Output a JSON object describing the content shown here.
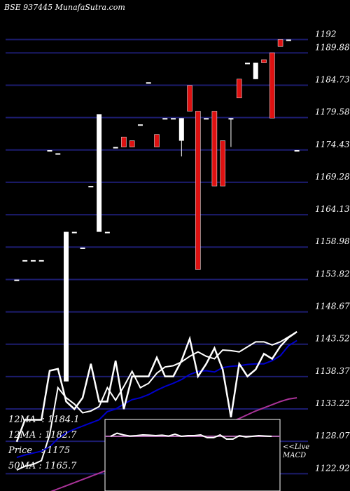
{
  "header": {
    "symbol": "BSE 937445",
    "site": "MunafaSutra.com"
  },
  "chart_data": {
    "type": "candlestick",
    "ylim": [
      1120.5,
      1195.5
    ],
    "y_ticks": [
      "1192",
      "1189.88",
      "1184.73",
      "1179.58",
      "1174.43",
      "1169.28",
      "1164.13",
      "1158.98",
      "1153.82",
      "1148.67",
      "1143.52",
      "1138.37",
      "1133.22",
      "1128.07",
      "1122.92"
    ],
    "tick_values": [
      1192,
      1189.88,
      1184.73,
      1179.58,
      1174.43,
      1169.28,
      1164.13,
      1158.98,
      1153.82,
      1148.67,
      1143.52,
      1138.37,
      1133.22,
      1128.07,
      1122.92
    ],
    "candles": [
      {
        "o": 1153.8,
        "h": 1153.8,
        "l": 1153.8,
        "c": 1153.8,
        "color": "white"
      },
      {
        "o": 1156.9,
        "h": 1156.9,
        "l": 1156.9,
        "c": 1156.9,
        "color": "white"
      },
      {
        "o": 1156.9,
        "h": 1156.9,
        "l": 1156.9,
        "c": 1156.9,
        "color": "white"
      },
      {
        "o": 1156.9,
        "h": 1156.9,
        "l": 1156.9,
        "c": 1156.9,
        "color": "white"
      },
      {
        "o": 1174.4,
        "h": 1174.4,
        "l": 1174.4,
        "c": 1174.4,
        "color": "white"
      },
      {
        "o": 1173.9,
        "h": 1173.9,
        "l": 1173.9,
        "c": 1173.9,
        "color": "white"
      },
      {
        "o": 1137.6,
        "h": 1161.4,
        "l": 1137.6,
        "c": 1161.4,
        "color": "white"
      },
      {
        "o": 1161.4,
        "h": 1161.4,
        "l": 1161.4,
        "c": 1161.4,
        "color": "white"
      },
      {
        "o": 1158.9,
        "h": 1158.9,
        "l": 1158.9,
        "c": 1158.9,
        "color": "white"
      },
      {
        "o": 1168.7,
        "h": 1168.7,
        "l": 1168.7,
        "c": 1168.7,
        "color": "white"
      },
      {
        "o": 1161.4,
        "h": 1180.1,
        "l": 1161.4,
        "c": 1180.1,
        "color": "white"
      },
      {
        "o": 1161.4,
        "h": 1161.4,
        "l": 1161.4,
        "c": 1161.4,
        "color": "white"
      },
      {
        "o": 1174.9,
        "h": 1174.9,
        "l": 1174.9,
        "c": 1174.9,
        "color": "white"
      },
      {
        "o": 1176.5,
        "h": 1176.5,
        "l": 1174.9,
        "c": 1174.9,
        "color": "red"
      },
      {
        "o": 1175.9,
        "h": 1175.9,
        "l": 1174.9,
        "c": 1174.9,
        "color": "red"
      },
      {
        "o": 1178.5,
        "h": 1178.5,
        "l": 1178.5,
        "c": 1178.5,
        "color": "white"
      },
      {
        "o": 1185.2,
        "h": 1185.2,
        "l": 1185.2,
        "c": 1185.2,
        "color": "white"
      },
      {
        "o": 1176.9,
        "h": 1176.9,
        "l": 1174.9,
        "c": 1174.9,
        "color": "red"
      },
      {
        "o": 1179.5,
        "h": 1179.5,
        "l": 1179.5,
        "c": 1179.5,
        "color": "white"
      },
      {
        "o": 1179.5,
        "h": 1179.5,
        "l": 1179.5,
        "c": 1179.5,
        "color": "white"
      },
      {
        "o": 1175.9,
        "h": 1179.5,
        "l": 1173.4,
        "c": 1179.5,
        "color": "white"
      },
      {
        "o": 1184.7,
        "h": 1184.7,
        "l": 1180.6,
        "c": 1180.6,
        "color": "red"
      },
      {
        "o": 1180.6,
        "h": 1180.6,
        "l": 1155.4,
        "c": 1155.4,
        "color": "red"
      },
      {
        "o": 1179.5,
        "h": 1179.5,
        "l": 1179.5,
        "c": 1179.5,
        "color": "white"
      },
      {
        "o": 1180.6,
        "h": 1180.6,
        "l": 1168.7,
        "c": 1168.7,
        "color": "red"
      },
      {
        "o": 1175.9,
        "h": 1175.9,
        "l": 1168.7,
        "c": 1168.7,
        "color": "red"
      },
      {
        "o": 1179.5,
        "h": 1179.5,
        "l": 1174.9,
        "c": 1179.5,
        "color": "white"
      },
      {
        "o": 1185.7,
        "h": 1185.7,
        "l": 1182.7,
        "c": 1182.7,
        "color": "red"
      },
      {
        "o": 1188.3,
        "h": 1188.3,
        "l": 1188.3,
        "c": 1188.3,
        "color": "white"
      },
      {
        "o": 1185.7,
        "h": 1188.3,
        "l": 1185.7,
        "c": 1188.3,
        "color": "white"
      },
      {
        "o": 1188.8,
        "h": 1188.8,
        "l": 1188.3,
        "c": 1188.3,
        "color": "red"
      },
      {
        "o": 1189.9,
        "h": 1189.9,
        "l": 1179.5,
        "c": 1179.5,
        "color": "red"
      },
      {
        "o": 1192,
        "h": 1192,
        "l": 1190.9,
        "c": 1190.9,
        "color": "red"
      },
      {
        "o": 1192,
        "h": 1192,
        "l": 1192,
        "c": 1192,
        "color": "white"
      },
      {
        "o": 1174.4,
        "h": 1174.4,
        "l": 1174.4,
        "c": 1174.4,
        "color": "white"
      }
    ],
    "ma_series": [
      {
        "name": "12MA",
        "color": "#ffffff",
        "values": [
          1123.5,
          1124.1,
          1124.4,
          1125.0,
          1129.1,
          1136.6,
          1135.0,
          1134.0,
          1132.6,
          1132.9,
          1133.6,
          1136.6,
          1134.6,
          1136.8,
          1139.2,
          1136.6,
          1137.3,
          1138.9,
          1139.9,
          1140.1,
          1140.7,
          1141.6,
          1142.3,
          1141.6,
          1141.2,
          1142.6,
          1142.5,
          1142.3,
          1143.1,
          1143.9,
          1143.9,
          1143.4,
          1143.9,
          1144.7,
          1145.5
        ]
      },
      {
        "name": "20MA",
        "color": "#0000cc",
        "values": [
          1125.5,
          1125.9,
          1126.2,
          1126.5,
          1127.2,
          1128.5,
          1129.4,
          1130.0,
          1130.5,
          1131.0,
          1131.5,
          1132.8,
          1133.2,
          1134.0,
          1134.7,
          1135.0,
          1135.5,
          1136.2,
          1136.8,
          1137.3,
          1137.9,
          1138.7,
          1139.2,
          1139.3,
          1139.1,
          1139.8,
          1140.0,
          1140.1,
          1140.3,
          1140.4,
          1140.4,
          1140.9,
          1141.7,
          1143.3,
          1144.1
        ]
      },
      {
        "name": "50MA",
        "color": "#aa3399",
        "values": [
          1118.0,
          1118.5,
          1119.0,
          1119.5,
          1120.0,
          1120.5,
          1121.0,
          1121.5,
          1122.0,
          1122.5,
          1123.0,
          1123.5,
          1124.0,
          1124.5,
          1125.0,
          1125.5,
          1126.0,
          1126.5,
          1127.0,
          1127.5,
          1128.0,
          1128.5,
          1129.0,
          1129.5,
          1130.0,
          1130.6,
          1131.2,
          1131.7,
          1132.3,
          1132.9,
          1133.4,
          1133.9,
          1134.4,
          1134.8,
          1135.0
        ]
      }
    ],
    "price_line": [
      1128.0,
      1131.5,
      1131.5,
      1131.5,
      1139.3,
      1139.6,
      1134.4,
      1133.2,
      1135.0,
      1140.4,
      1134.4,
      1134.4,
      1140.9,
      1133.2,
      1138.4,
      1138.4,
      1138.4,
      1141.4,
      1138.4,
      1138.4,
      1140.9,
      1144.4,
      1138.4,
      1140.4,
      1142.9,
      1139.5,
      1131.9,
      1140.4,
      1138.4,
      1139.5,
      1142.0,
      1141.2,
      1143.2,
      1144.6,
      1145.5
    ],
    "macd": {
      "ylim": [
        -1,
        1
      ],
      "line": [
        0.0,
        0.22,
        0.1,
        0.02,
        0.05,
        0.1,
        0.08,
        0.05,
        0.08,
        0.02,
        0.15,
        0.0,
        0.05,
        0.05,
        0.1,
        -0.1,
        -0.1,
        0.1,
        -0.2,
        -0.2,
        0.05,
        -0.05,
        0.0,
        0.05,
        0.02,
        0.0
      ]
    },
    "stats": [
      {
        "label": "12MA",
        "value": "1184.1"
      },
      {
        "label": "12MA",
        "value": "1182.7"
      },
      {
        "label": "Price",
        "value": "1175"
      },
      {
        "label": "50MA",
        "value": "1165.7"
      }
    ],
    "macd_label": [
      "<<Live",
      "MACD"
    ],
    "grid": true
  }
}
